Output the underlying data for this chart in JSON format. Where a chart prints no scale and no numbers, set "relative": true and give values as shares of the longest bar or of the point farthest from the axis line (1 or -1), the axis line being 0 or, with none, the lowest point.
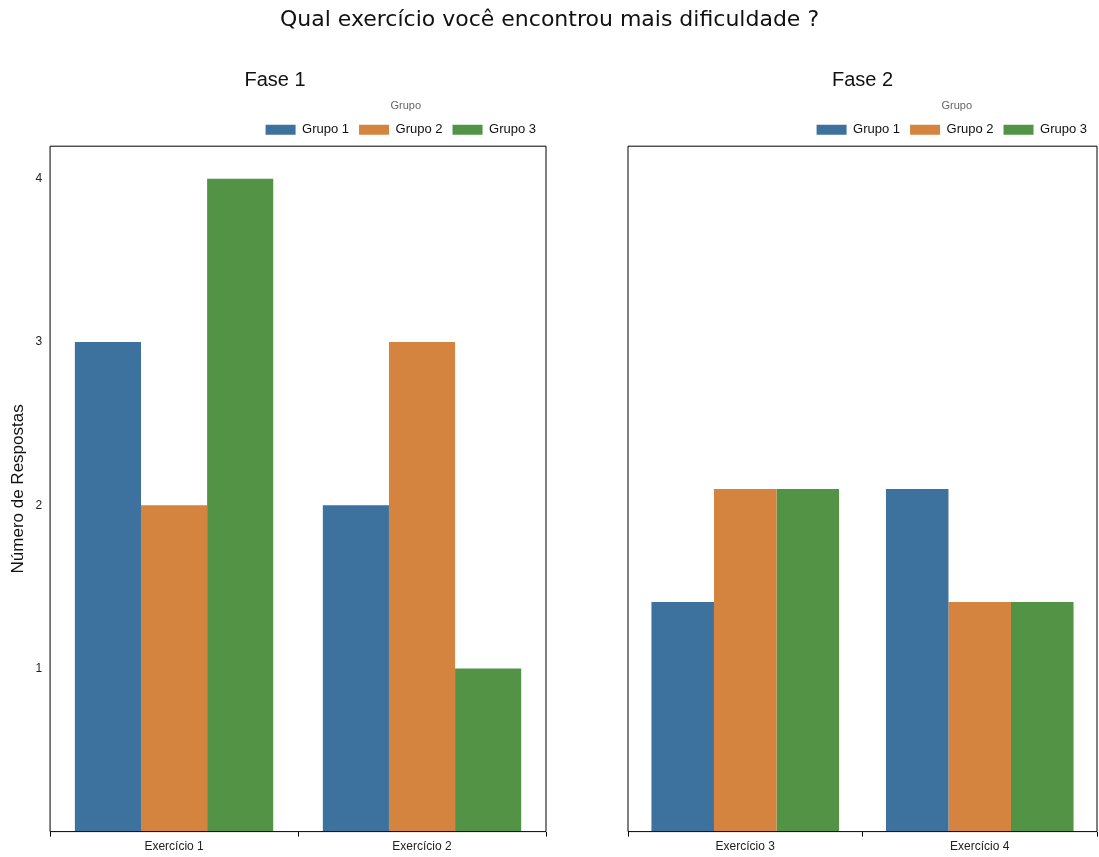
{
  "chart_data": [
    {
      "type": "bar",
      "title": "Fase 1",
      "annotations": [
        "Qual exercício você encontrou mais dificuldade ?"
      ],
      "ylabel": "Número de Respostas",
      "categories": [
        "Exercício 1",
        "Exercício 2"
      ],
      "series": [
        {
          "name": "Grupo 1",
          "color": "#3e729e",
          "values": [
            3,
            2
          ]
        },
        {
          "name": "Grupo 2",
          "color": "#d4843e",
          "values": [
            2,
            3
          ]
        },
        {
          "name": "Grupo 3",
          "color": "#529346",
          "values": [
            4,
            1
          ]
        }
      ],
      "ylim": [
        0,
        4.2
      ],
      "yticks": [
        1,
        2,
        3,
        4
      ],
      "grid": false,
      "legend": "top right",
      "legend_title": "Grupo"
    },
    {
      "type": "bar",
      "title": "Fase 2",
      "categories": [
        "Exercício 3",
        "Exercício 4"
      ],
      "relative": true,
      "tick_labels": "x",
      "series": [
        {
          "name": "Grupo 1",
          "color": "#3e729e",
          "values": [
            0.67,
            1
          ]
        },
        {
          "name": "Grupo 2",
          "color": "#d4843e",
          "values": [
            1,
            0.67
          ]
        },
        {
          "name": "Grupo 3",
          "color": "#529346",
          "values": [
            1,
            0.67
          ]
        }
      ],
      "grid": false,
      "legend": "top right",
      "legend_title": "Grupo"
    }
  ]
}
